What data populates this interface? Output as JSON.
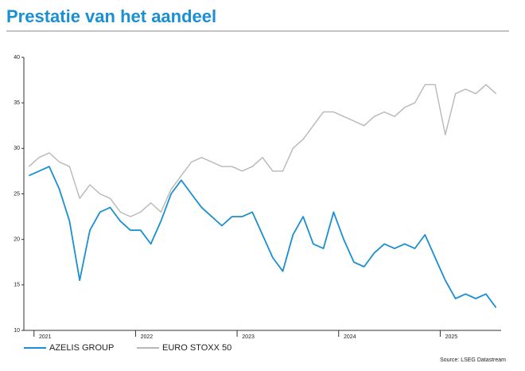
{
  "chart_data": {
    "type": "line",
    "title": "Prestatie van het aandeel",
    "source": "Source: LSEG Datastream",
    "x": [
      2020.95,
      2021.05,
      2021.15,
      2021.25,
      2021.35,
      2021.45,
      2021.55,
      2021.65,
      2021.75,
      2021.85,
      2021.95,
      2022.05,
      2022.15,
      2022.25,
      2022.35,
      2022.45,
      2022.55,
      2022.65,
      2022.75,
      2022.85,
      2022.95,
      2023.05,
      2023.15,
      2023.25,
      2023.35,
      2023.45,
      2023.55,
      2023.65,
      2023.75,
      2023.85,
      2023.95,
      2024.05,
      2024.15,
      2024.25,
      2024.35,
      2024.45,
      2024.55,
      2024.65,
      2024.75,
      2024.85,
      2024.95,
      2025.05,
      2025.15,
      2025.25,
      2025.35,
      2025.45,
      2025.55
    ],
    "series": [
      {
        "name": "AZELIS GROUP",
        "color": "#1a8fd1",
        "values": [
          27.0,
          27.5,
          28.0,
          25.5,
          22.0,
          15.5,
          21.0,
          23.0,
          23.5,
          22.0,
          21.0,
          21.0,
          19.5,
          22.0,
          25.0,
          26.5,
          25.0,
          23.5,
          22.5,
          21.5,
          22.5,
          22.5,
          23.0,
          20.5,
          18.0,
          16.5,
          20.5,
          22.5,
          19.5,
          19.0,
          23.0,
          20.0,
          17.5,
          17.0,
          18.5,
          19.5,
          19.0,
          19.5,
          19.0,
          20.5,
          18.0,
          15.5,
          13.5,
          14.0,
          13.5,
          14.0,
          12.5
        ]
      },
      {
        "name": "EURO STOXX 50",
        "color": "#b8b8b8",
        "values": [
          28.0,
          29.0,
          29.5,
          28.5,
          28.0,
          24.5,
          26.0,
          25.0,
          24.5,
          23.0,
          22.5,
          23.0,
          24.0,
          23.0,
          25.5,
          27.0,
          28.5,
          29.0,
          28.5,
          28.0,
          28.0,
          27.5,
          28.0,
          29.0,
          27.5,
          27.5,
          30.0,
          31.0,
          32.5,
          34.0,
          34.0,
          33.5,
          33.0,
          32.5,
          33.5,
          34.0,
          33.5,
          34.5,
          35.0,
          37.0,
          37.0,
          31.5,
          36.0,
          36.5,
          36.0,
          37.0,
          36.0
        ]
      }
    ],
    "xlim": [
      2020.9,
      2025.6
    ],
    "xticks": [
      2021,
      2022,
      2023,
      2024,
      2025
    ],
    "ylim": [
      10,
      40
    ],
    "yticks": [
      10,
      15,
      20,
      25,
      30,
      35,
      40
    ]
  }
}
